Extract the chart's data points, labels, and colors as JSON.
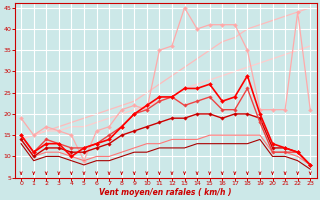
{
  "bg_color": "#cce8e8",
  "grid_color": "#ffffff",
  "xlabel": "Vent moyen/en rafales ( km/h )",
  "xlabel_color": "#cc0000",
  "tick_color": "#cc0000",
  "xlim": [
    -0.5,
    23.5
  ],
  "ylim": [
    5,
    46
  ],
  "yticks": [
    5,
    10,
    15,
    20,
    25,
    30,
    35,
    40,
    45
  ],
  "xticks": [
    0,
    1,
    2,
    3,
    4,
    5,
    6,
    7,
    8,
    9,
    10,
    11,
    12,
    13,
    14,
    15,
    16,
    17,
    18,
    19,
    20,
    21,
    22,
    23
  ],
  "series": [
    {
      "x": [
        0,
        1,
        2,
        3,
        4,
        5,
        6,
        7,
        8,
        9,
        10,
        11,
        12,
        13,
        14,
        15,
        16,
        17,
        18,
        19,
        20,
        21,
        22,
        23
      ],
      "y": [
        19,
        15,
        17,
        16,
        15,
        9,
        16,
        17,
        21,
        22,
        21,
        35,
        36,
        45,
        40,
        41,
        41,
        41,
        35,
        21,
        21,
        21,
        44,
        21
      ],
      "color": "#ffaaaa",
      "lw": 0.9,
      "marker": "D",
      "ms": 2.0,
      "zorder": 2
    },
    {
      "x": [
        0,
        1,
        2,
        3,
        4,
        5,
        6,
        7,
        8,
        9,
        10,
        11,
        12,
        13,
        14,
        15,
        16,
        17,
        18,
        19,
        20,
        21,
        22,
        23
      ],
      "y": [
        14,
        15,
        16,
        17,
        18,
        19,
        20,
        21,
        22,
        23,
        25,
        27,
        29,
        31,
        33,
        35,
        37,
        38,
        40,
        41,
        42,
        43,
        44,
        45
      ],
      "color": "#ffbbbb",
      "lw": 0.9,
      "marker": null,
      "ms": 0,
      "zorder": 1
    },
    {
      "x": [
        0,
        1,
        2,
        3,
        4,
        5,
        6,
        7,
        8,
        9,
        10,
        11,
        12,
        13,
        14,
        15,
        16,
        17,
        18,
        19,
        20,
        21,
        22,
        23
      ],
      "y": [
        14,
        15,
        16,
        16,
        17,
        17,
        18,
        19,
        20,
        21,
        22,
        23,
        24,
        26,
        27,
        28,
        29,
        30,
        31,
        32,
        33,
        34,
        35,
        36
      ],
      "color": "#ffcccc",
      "lw": 0.9,
      "marker": null,
      "ms": 0,
      "zorder": 1
    },
    {
      "x": [
        0,
        1,
        2,
        3,
        4,
        5,
        6,
        7,
        8,
        9,
        10,
        11,
        12,
        13,
        14,
        15,
        16,
        17,
        18,
        19,
        20,
        21,
        22,
        23
      ],
      "y": [
        15,
        11,
        13,
        13,
        10,
        12,
        13,
        14,
        17,
        20,
        22,
        24,
        24,
        26,
        26,
        27,
        23,
        24,
        29,
        20,
        13,
        12,
        11,
        8
      ],
      "color": "#ff0000",
      "lw": 1.2,
      "marker": "D",
      "ms": 2.0,
      "zorder": 4
    },
    {
      "x": [
        0,
        1,
        2,
        3,
        4,
        5,
        6,
        7,
        8,
        9,
        10,
        11,
        12,
        13,
        14,
        15,
        16,
        17,
        18,
        19,
        20,
        21,
        22,
        23
      ],
      "y": [
        14,
        10,
        12,
        12,
        11,
        11,
        12,
        13,
        15,
        16,
        17,
        18,
        19,
        19,
        20,
        20,
        19,
        20,
        20,
        19,
        12,
        12,
        11,
        8
      ],
      "color": "#cc0000",
      "lw": 1.0,
      "marker": "D",
      "ms": 1.8,
      "zorder": 3
    },
    {
      "x": [
        0,
        1,
        2,
        3,
        4,
        5,
        6,
        7,
        8,
        9,
        10,
        11,
        12,
        13,
        14,
        15,
        16,
        17,
        18,
        19,
        20,
        21,
        22,
        23
      ],
      "y": [
        15,
        11,
        14,
        13,
        12,
        12,
        13,
        15,
        17,
        20,
        21,
        23,
        24,
        22,
        23,
        24,
        21,
        21,
        26,
        18,
        11,
        11,
        11,
        8
      ],
      "color": "#ee4444",
      "lw": 1.0,
      "marker": "D",
      "ms": 1.8,
      "zorder": 3
    },
    {
      "x": [
        0,
        1,
        2,
        3,
        4,
        5,
        6,
        7,
        8,
        9,
        10,
        11,
        12,
        13,
        14,
        15,
        16,
        17,
        18,
        19,
        20,
        21,
        22,
        23
      ],
      "y": [
        14,
        10,
        11,
        11,
        10,
        9,
        10,
        10,
        11,
        12,
        13,
        13,
        14,
        14,
        14,
        15,
        15,
        15,
        15,
        15,
        11,
        11,
        10,
        8
      ],
      "color": "#ff7777",
      "lw": 0.8,
      "marker": null,
      "ms": 0,
      "zorder": 2
    },
    {
      "x": [
        0,
        1,
        2,
        3,
        4,
        5,
        6,
        7,
        8,
        9,
        10,
        11,
        12,
        13,
        14,
        15,
        16,
        17,
        18,
        19,
        20,
        21,
        22,
        23
      ],
      "y": [
        13,
        9,
        10,
        10,
        9,
        8,
        9,
        9,
        10,
        11,
        11,
        12,
        12,
        12,
        13,
        13,
        13,
        13,
        13,
        14,
        10,
        10,
        9,
        7
      ],
      "color": "#aa0000",
      "lw": 0.8,
      "marker": null,
      "ms": 0,
      "zorder": 2
    }
  ],
  "arrow_color": "#cc0000"
}
